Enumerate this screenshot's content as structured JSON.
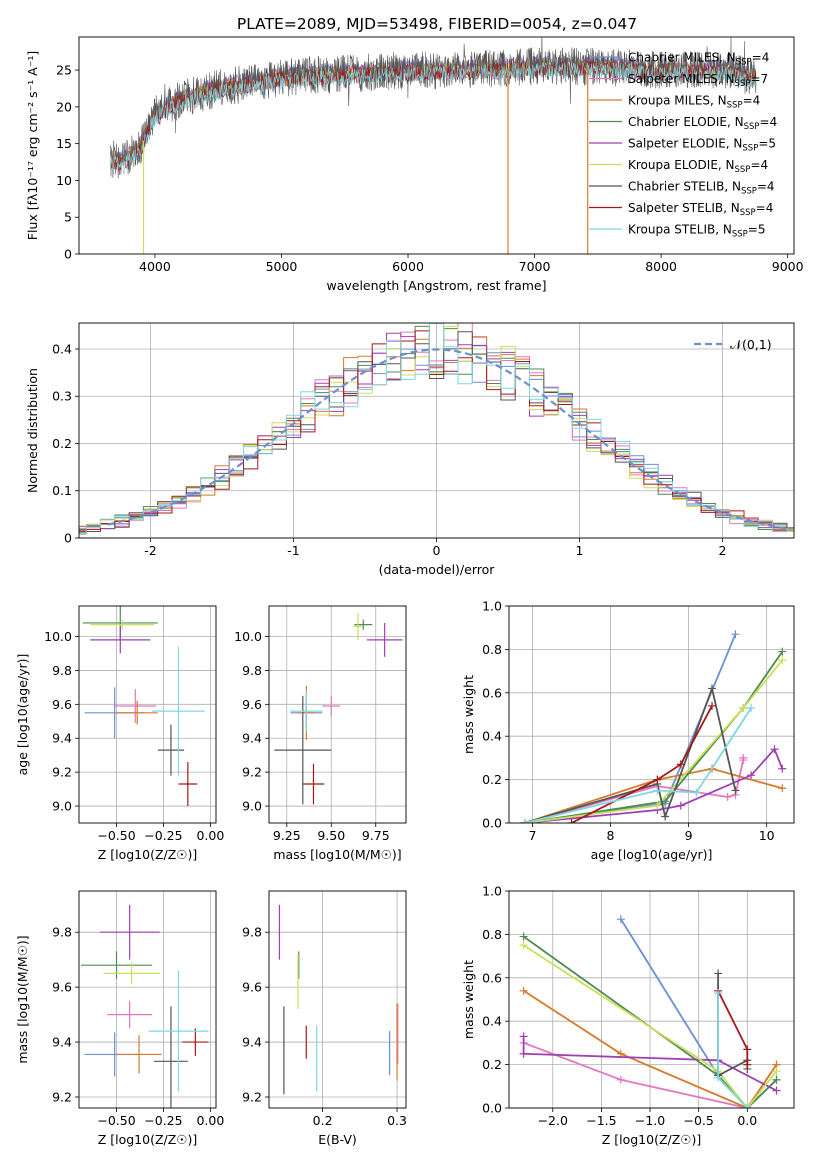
{
  "chart_data": [
    {
      "id": "spectrum",
      "type": "line",
      "title": "PLATE=2089, MJD=53498, FIBERID=0054, z=0.047",
      "xlabel": "wavelength [Angstrom, rest frame]",
      "ylabel": "Flux [fλ10⁻¹⁷ erg cm⁻² s⁻¹ A⁻¹]",
      "xlim": [
        3400,
        9050
      ],
      "ylim": [
        0,
        29.5
      ],
      "xticks": [
        4000,
        5000,
        6000,
        7000,
        8000,
        9000
      ],
      "yticks": [
        0,
        5,
        10,
        15,
        20,
        25
      ],
      "grid": false,
      "legend_position": "top-right",
      "data_range": [
        3650,
        8750
      ],
      "continuum": [
        [
          3650,
          13
        ],
        [
          3750,
          12.5
        ],
        [
          3900,
          15
        ],
        [
          4000,
          19
        ],
        [
          4200,
          21
        ],
        [
          4500,
          22.5
        ],
        [
          5000,
          24
        ],
        [
          5500,
          24.5
        ],
        [
          6000,
          25
        ],
        [
          6500,
          25
        ],
        [
          7000,
          25.5
        ],
        [
          7500,
          25.5
        ],
        [
          8000,
          25
        ],
        [
          8500,
          25
        ],
        [
          8750,
          24
        ]
      ],
      "dropouts": [
        [
          3910,
          0
        ],
        [
          6790,
          0
        ],
        [
          7420,
          0
        ]
      ],
      "series": [
        {
          "name": "Chabrier MILES, N$_{SSP}$=4",
          "label_main": "Chabrier MILES, N",
          "label_sub": "SSP",
          "label_tail": "=4",
          "color": "#6a8fd4",
          "offset": 0.5
        },
        {
          "name": "Salpeter MILES, N$_{SSP}$=7",
          "label_main": "Salpeter MILES, N",
          "label_sub": "SSP",
          "label_tail": "=7",
          "color": "#e377c2",
          "offset": -0.4
        },
        {
          "name": "Kroupa MILES, N$_{SSP}$=4",
          "label_main": "Kroupa MILES, N",
          "label_sub": "SSP",
          "label_tail": "=4",
          "color": "#d97a2b",
          "offset": 0.2
        },
        {
          "name": "Chabrier ELODIE, N$_{SSP}$=4",
          "label_main": "Chabrier ELODIE, N",
          "label_sub": "SSP",
          "label_tail": "=4",
          "color": "#4e8c52",
          "offset": -0.2
        },
        {
          "name": "Salpeter ELODIE, N$_{SSP}$=5",
          "label_main": "Salpeter ELODIE, N",
          "label_sub": "SSP",
          "label_tail": "=5",
          "color": "#a23fb5",
          "offset": 0.3
        },
        {
          "name": "Kroupa ELODIE, N$_{SSP}$=4",
          "label_main": "Kroupa ELODIE, N",
          "label_sub": "SSP",
          "label_tail": "=4",
          "color": "#c8e05a",
          "offset": 0.0
        },
        {
          "name": "Chabrier STELIB, N$_{SSP}$=4",
          "label_main": "Chabrier STELIB, N",
          "label_sub": "SSP",
          "label_tail": "=4",
          "color": "#555555",
          "offset": 0.0,
          "noisy": true
        },
        {
          "name": "Salpeter STELIB, N$_{SSP}$=4",
          "label_main": "Salpeter STELIB, N",
          "label_sub": "SSP",
          "label_tail": "=4",
          "color": "#a81818",
          "offset": -0.3
        },
        {
          "name": "Kroupa STELIB, N$_{SSP}$=5",
          "label_main": "Kroupa STELIB, N",
          "label_sub": "SSP",
          "label_tail": "=5",
          "color": "#7fd6e0",
          "offset": -0.5
        }
      ]
    },
    {
      "id": "residuals",
      "type": "histogram",
      "xlabel": "(data-model)/error",
      "ylabel": "Normed distribution",
      "xlim": [
        -2.5,
        2.5
      ],
      "ylim": [
        0,
        0.455
      ],
      "xticks": [
        -2,
        -1,
        0,
        1,
        2
      ],
      "yticks": [
        0.0,
        0.1,
        0.2,
        0.3,
        0.4
      ],
      "grid": true,
      "bin_width": 0.1,
      "legend": "𝒩(0,1)",
      "legend_position": "top-right",
      "gaussian": {
        "mean": 0,
        "sigma": 1,
        "color": "#6a8fd4"
      },
      "hist_colors": [
        "#6a8fd4",
        "#e377c2",
        "#d97a2b",
        "#4e8c52",
        "#a23fb5",
        "#c8e05a",
        "#555555",
        "#a81818",
        "#7fd6e0"
      ]
    },
    {
      "id": "age_vs_Z",
      "type": "errorbar",
      "xlabel": "Z [log10(Z/Z☉)]",
      "ylabel": "age  [log10(age/yr)]",
      "xlim": [
        -0.7,
        0.03
      ],
      "ylim": [
        8.9,
        10.18
      ],
      "xticks": [
        -0.5,
        -0.25,
        0.0
      ],
      "xtick_labels": [
        "−0.50",
        "−0.25",
        "0.00"
      ],
      "yticks": [
        9.0,
        9.2,
        9.4,
        9.6,
        9.8,
        10.0
      ],
      "ytick_labels": [
        "9.0",
        "9.2",
        "9.4",
        "9.6",
        "9.8",
        "10.0"
      ],
      "grid": true,
      "points": [
        {
          "x": -0.51,
          "y": 9.55,
          "xerr": 0.16,
          "yerr": 0.15,
          "color": "#6a8fd4"
        },
        {
          "x": -0.4,
          "y": 9.59,
          "xerr": 0.11,
          "yerr": 0.1,
          "color": "#e377c2"
        },
        {
          "x": -0.39,
          "y": 9.55,
          "xerr": 0.11,
          "yerr": 0.07,
          "color": "#d97a2b"
        },
        {
          "x": -0.48,
          "y": 10.08,
          "xerr": 0.2,
          "yerr": 0.1,
          "color": "#4e8c52"
        },
        {
          "x": -0.48,
          "y": 9.98,
          "xerr": 0.16,
          "yerr": 0.08,
          "color": "#a23fb5"
        },
        {
          "x": -0.47,
          "y": 10.07,
          "xerr": 0.17,
          "yerr": 0.03,
          "color": "#c8e05a"
        },
        {
          "x": -0.21,
          "y": 9.33,
          "xerr": 0.07,
          "yerr": 0.15,
          "color": "#555555"
        },
        {
          "x": -0.12,
          "y": 9.13,
          "xerr": 0.05,
          "yerr": 0.13,
          "color": "#a81818"
        },
        {
          "x": -0.17,
          "y": 9.56,
          "xerr": 0.14,
          "yerr": 0.38,
          "color": "#7fd6e0"
        }
      ]
    },
    {
      "id": "age_vs_mass",
      "type": "errorbar",
      "xlabel": "mass [log10(M/M☉)]",
      "ylabel": "",
      "xlim": [
        9.15,
        9.92
      ],
      "ylim": [
        8.9,
        10.18
      ],
      "xticks": [
        9.25,
        9.5,
        9.75
      ],
      "xtick_labels": [
        "9.25",
        "9.50",
        "9.75"
      ],
      "yticks": [
        9.0,
        9.2,
        9.4,
        9.6,
        9.8,
        10.0
      ],
      "ytick_labels": [
        "9.0",
        "9.2",
        "9.4",
        "9.6",
        "9.8",
        "10.0"
      ],
      "grid": true,
      "points": [
        {
          "x": 9.36,
          "y": 9.55,
          "xerr": 0.09,
          "yerr": 0.08,
          "color": "#6a8fd4"
        },
        {
          "x": 9.5,
          "y": 9.59,
          "xerr": 0.05,
          "yerr": 0.06,
          "color": "#e377c2"
        },
        {
          "x": 9.36,
          "y": 9.55,
          "xerr": 0.05,
          "yerr": 0.16,
          "color": "#d97a2b"
        },
        {
          "x": 9.68,
          "y": 10.07,
          "xerr": 0.05,
          "yerr": 0.03,
          "color": "#4e8c52"
        },
        {
          "x": 9.8,
          "y": 9.98,
          "xerr": 0.1,
          "yerr": 0.1,
          "color": "#a23fb5"
        },
        {
          "x": 9.65,
          "y": 10.06,
          "xerr": 0.03,
          "yerr": 0.08,
          "color": "#c8e05a"
        },
        {
          "x": 9.34,
          "y": 9.33,
          "xerr": 0.16,
          "yerr": 0.32,
          "color": "#555555"
        },
        {
          "x": 9.4,
          "y": 9.13,
          "xerr": 0.06,
          "yerr": 0.12,
          "color": "#a81818"
        },
        {
          "x": 9.36,
          "y": 9.56,
          "xerr": 0.09,
          "yerr": 0.12,
          "color": "#7fd6e0"
        }
      ]
    },
    {
      "id": "massweight_vs_age",
      "type": "line",
      "xlabel": "age  [log10(age/yr)]",
      "ylabel": "mass weight",
      "xlim": [
        6.7,
        10.35
      ],
      "ylim": [
        0,
        1.0
      ],
      "xticks": [
        7,
        8,
        9,
        10
      ],
      "yticks": [
        0.0,
        0.2,
        0.4,
        0.6,
        0.8,
        1.0
      ],
      "ytick_labels": [
        "0.0",
        "0.2",
        "0.4",
        "0.6",
        "0.8",
        "1.0"
      ],
      "grid": true,
      "series": [
        {
          "color": "#6a8fd4",
          "points": [
            [
              6.9,
              0
            ],
            [
              8.7,
              0.09
            ],
            [
              9.6,
              0.87
            ]
          ]
        },
        {
          "color": "#e377c2",
          "points": [
            [
              6.9,
              0
            ],
            [
              8.6,
              0.17
            ],
            [
              9.5,
              0.12
            ],
            [
              9.6,
              0.13
            ],
            [
              9.7,
              0.29
            ],
            [
              9.7,
              0.3
            ]
          ]
        },
        {
          "color": "#d97a2b",
          "points": [
            [
              6.9,
              0
            ],
            [
              8.6,
              0.2
            ],
            [
              9.3,
              0.25
            ],
            [
              10.2,
              0.16
            ]
          ]
        },
        {
          "color": "#4e8c52",
          "points": [
            [
              6.9,
              0
            ],
            [
              8.7,
              0.1
            ],
            [
              9.7,
              0.53
            ],
            [
              10.2,
              0.79
            ]
          ]
        },
        {
          "color": "#a23fb5",
          "points": [
            [
              6.9,
              0
            ],
            [
              8.6,
              0.06
            ],
            [
              8.9,
              0.08
            ],
            [
              9.8,
              0.22
            ],
            [
              10.1,
              0.34
            ],
            [
              10.2,
              0.25
            ]
          ]
        },
        {
          "color": "#c8e05a",
          "points": [
            [
              6.9,
              0
            ],
            [
              8.6,
              0.08
            ],
            [
              9.7,
              0.53
            ],
            [
              10.2,
              0.75
            ]
          ]
        },
        {
          "color": "#555555",
          "points": [
            [
              6.9,
              0
            ],
            [
              8.6,
              0.18
            ],
            [
              8.7,
              0.03
            ],
            [
              9.3,
              0.62
            ],
            [
              9.6,
              0.15
            ]
          ]
        },
        {
          "color": "#a81818",
          "points": [
            [
              7.5,
              0
            ],
            [
              8.6,
              0.2
            ],
            [
              8.9,
              0.27
            ],
            [
              9.3,
              0.54
            ]
          ]
        },
        {
          "color": "#7fd6e0",
          "points": [
            [
              6.9,
              0
            ],
            [
              8.6,
              0.15
            ],
            [
              9.1,
              0.14
            ],
            [
              9.8,
              0.53
            ]
          ]
        }
      ]
    },
    {
      "id": "mass_vs_Z",
      "type": "errorbar",
      "xlabel": "Z [log10(Z/Z☉)]",
      "ylabel": "mass [log10(M/M☉)]",
      "xlim": [
        -0.7,
        0.03
      ],
      "ylim": [
        9.16,
        9.95
      ],
      "xticks": [
        -0.5,
        -0.25,
        0.0
      ],
      "xtick_labels": [
        "−0.50",
        "−0.25",
        "0.00"
      ],
      "yticks": [
        9.2,
        9.4,
        9.6,
        9.8
      ],
      "ytick_labels": [
        "9.2",
        "9.4",
        "9.6",
        "9.8"
      ],
      "grid": true,
      "points": [
        {
          "x": -0.51,
          "y": 9.355,
          "xerr": 0.16,
          "yerr": 0.08,
          "color": "#6a8fd4"
        },
        {
          "x": -0.43,
          "y": 9.5,
          "xerr": 0.12,
          "yerr": 0.05,
          "color": "#e377c2"
        },
        {
          "x": -0.38,
          "y": 9.355,
          "xerr": 0.12,
          "yerr": 0.07,
          "color": "#d97a2b"
        },
        {
          "x": -0.5,
          "y": 9.68,
          "xerr": 0.19,
          "yerr": 0.05,
          "color": "#4e8c52"
        },
        {
          "x": -0.43,
          "y": 9.8,
          "xerr": 0.16,
          "yerr": 0.1,
          "color": "#a23fb5"
        },
        {
          "x": -0.42,
          "y": 9.65,
          "xerr": 0.15,
          "yerr": 0.04,
          "color": "#c8e05a"
        },
        {
          "x": -0.21,
          "y": 9.33,
          "xerr": 0.09,
          "yerr": 0.2,
          "color": "#555555"
        },
        {
          "x": -0.08,
          "y": 9.4,
          "xerr": 0.07,
          "yerr": 0.05,
          "color": "#a81818"
        },
        {
          "x": -0.17,
          "y": 9.44,
          "xerr": 0.16,
          "yerr": 0.22,
          "color": "#7fd6e0"
        }
      ]
    },
    {
      "id": "mass_vs_EBV",
      "type": "errorbar",
      "xlabel": "E(B-V)",
      "ylabel": "",
      "xlim": [
        0.128,
        0.312
      ],
      "ylim": [
        9.16,
        9.95
      ],
      "xticks": [
        0.2,
        0.3
      ],
      "xtick_labels": [
        "0.2",
        "0.3"
      ],
      "yticks": [
        9.2,
        9.4,
        9.6,
        9.8
      ],
      "ytick_labels": [
        "9.2",
        "9.4",
        "9.6",
        "9.8"
      ],
      "grid": true,
      "points": [
        {
          "x": 0.29,
          "y": 9.36,
          "xerr": 0,
          "yerr": 0.08,
          "color": "#6a8fd4"
        },
        {
          "x": 0.301,
          "y": 9.43,
          "xerr": 0,
          "yerr": 0.11,
          "color": "#e377c2"
        },
        {
          "x": 0.3,
          "y": 9.4,
          "xerr": 0,
          "yerr": 0.14,
          "color": "#d97a2b"
        },
        {
          "x": 0.168,
          "y": 9.68,
          "xerr": 0,
          "yerr": 0.05,
          "color": "#4e8c52"
        },
        {
          "x": 0.142,
          "y": 9.8,
          "xerr": 0,
          "yerr": 0.1,
          "color": "#a23fb5"
        },
        {
          "x": 0.167,
          "y": 9.62,
          "xerr": 0,
          "yerr": 0.1,
          "color": "#c8e05a"
        },
        {
          "x": 0.148,
          "y": 9.37,
          "xerr": 0,
          "yerr": 0.16,
          "color": "#555555"
        },
        {
          "x": 0.178,
          "y": 9.4,
          "xerr": 0,
          "yerr": 0.06,
          "color": "#a81818"
        },
        {
          "x": 0.192,
          "y": 9.34,
          "xerr": 0,
          "yerr": 0.12,
          "color": "#7fd6e0"
        }
      ]
    },
    {
      "id": "massweight_vs_Z",
      "type": "line",
      "xlabel": "Z [log10(Z/Z☉)]",
      "ylabel": "mass weight",
      "xlim": [
        -2.45,
        0.48
      ],
      "ylim": [
        0,
        1.0
      ],
      "xticks": [
        -2.0,
        -1.5,
        -1.0,
        -0.5,
        0.0
      ],
      "xtick_labels": [
        "−2.0",
        "−1.5",
        "−1.0",
        "−0.5",
        "0.0"
      ],
      "yticks": [
        0.0,
        0.2,
        0.4,
        0.6,
        0.8,
        1.0
      ],
      "ytick_labels": [
        "0.0",
        "0.2",
        "0.4",
        "0.6",
        "0.8",
        "1.0"
      ],
      "grid": true,
      "series": [
        {
          "color": "#6a8fd4",
          "points": [
            [
              -1.3,
              0.87
            ],
            [
              -0.3,
              0.15
            ],
            [
              0,
              0.0
            ],
            [
              0.3,
              0.13
            ]
          ]
        },
        {
          "color": "#e377c2",
          "points": [
            [
              -2.3,
              0.3
            ],
            [
              -1.3,
              0.13
            ],
            [
              0,
              0.0
            ],
            [
              0.3,
              0.2
            ]
          ]
        },
        {
          "color": "#d97a2b",
          "points": [
            [
              -2.3,
              0.54
            ],
            [
              -1.3,
              0.25
            ],
            [
              0,
              0.0
            ],
            [
              0.3,
              0.2
            ]
          ]
        },
        {
          "color": "#4e8c52",
          "points": [
            [
              -2.3,
              0.79
            ],
            [
              -0.3,
              0.15
            ],
            [
              0,
              0.0
            ],
            [
              0.3,
              0.13
            ]
          ]
        },
        {
          "color": "#a23fb5",
          "points": [
            [
              -2.3,
              0.33
            ],
            [
              -2.3,
              0.25
            ],
            [
              -0.3,
              0.22
            ],
            [
              0.3,
              0.08
            ]
          ]
        },
        {
          "color": "#c8e05a",
          "points": [
            [
              -2.3,
              0.75
            ],
            [
              -0.3,
              0.17
            ],
            [
              0,
              0.0
            ],
            [
              0.3,
              0.17
            ]
          ]
        },
        {
          "color": "#555555",
          "points": [
            [
              -0.3,
              0.62
            ],
            [
              -0.3,
              0.15
            ],
            [
              0,
              0.22
            ],
            [
              0,
              0.18
            ]
          ]
        },
        {
          "color": "#a81818",
          "points": [
            [
              -0.3,
              0.54
            ],
            [
              0,
              0.27
            ],
            [
              0,
              0.2
            ]
          ]
        },
        {
          "color": "#7fd6e0",
          "points": [
            [
              -0.3,
              0.53
            ],
            [
              -0.3,
              0.14
            ],
            [
              0,
              0.0
            ]
          ]
        }
      ]
    }
  ]
}
